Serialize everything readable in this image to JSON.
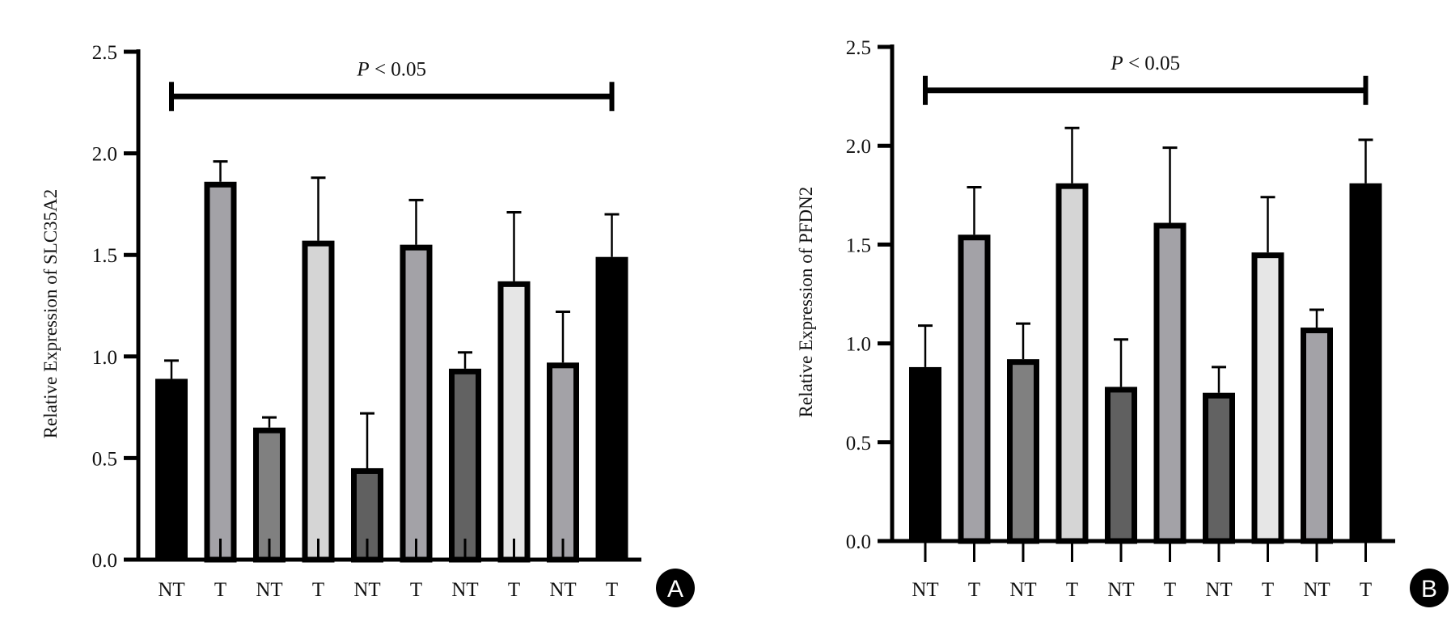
{
  "chart_data": [
    {
      "type": "bar",
      "panel": "A",
      "title": "",
      "xlabel": "",
      "ylabel": "Relative Expression of SLC35A2",
      "ylim": [
        0,
        2.5
      ],
      "yticks": [
        "0.0",
        "0.5",
        "1.0",
        "1.5",
        "2.0",
        "2.5"
      ],
      "categories": [
        "NT",
        "T",
        "NT",
        "T",
        "NT",
        "T",
        "NT",
        "T",
        "NT",
        "T"
      ],
      "values": [
        0.89,
        1.86,
        0.65,
        1.57,
        0.45,
        1.55,
        0.94,
        1.37,
        0.97,
        1.49
      ],
      "error_upper": [
        0.98,
        1.96,
        0.7,
        1.88,
        0.72,
        1.77,
        1.02,
        1.71,
        1.22,
        1.7
      ],
      "fills": [
        "#000000",
        "#a3a2a7",
        "#808080",
        "#d5d5d5",
        "#606060",
        "#a3a2a7",
        "#626262",
        "#e6e6e6",
        "#a3a2a7",
        "#000000"
      ],
      "annotation": {
        "italic": "P",
        "text": " < 0.05",
        "from_index": 0,
        "to_index": 9,
        "y": 2.28
      },
      "grid": false
    },
    {
      "type": "bar",
      "panel": "B",
      "title": "",
      "xlabel": "",
      "ylabel": "Relative Expression of PFDN2",
      "ylim": [
        0,
        2.5
      ],
      "yticks": [
        "0.0",
        "0.5",
        "1.0",
        "1.5",
        "2.0",
        "2.5"
      ],
      "categories": [
        "NT",
        "T",
        "NT",
        "T",
        "NT",
        "T",
        "NT",
        "T",
        "NT",
        "T"
      ],
      "values": [
        0.88,
        1.55,
        0.92,
        1.81,
        0.78,
        1.61,
        0.75,
        1.46,
        1.08,
        1.81
      ],
      "error_upper": [
        1.09,
        1.79,
        1.1,
        2.09,
        1.02,
        1.99,
        0.88,
        1.74,
        1.17,
        2.03
      ],
      "fills": [
        "#000000",
        "#a3a2a7",
        "#808080",
        "#d5d5d5",
        "#606060",
        "#a3a2a7",
        "#626262",
        "#e6e6e6",
        "#a3a2a7",
        "#000000"
      ],
      "annotation": {
        "italic": "P",
        "text": " < 0.05",
        "from_index": 0,
        "to_index": 9,
        "y": 2.28
      },
      "grid": false
    }
  ]
}
